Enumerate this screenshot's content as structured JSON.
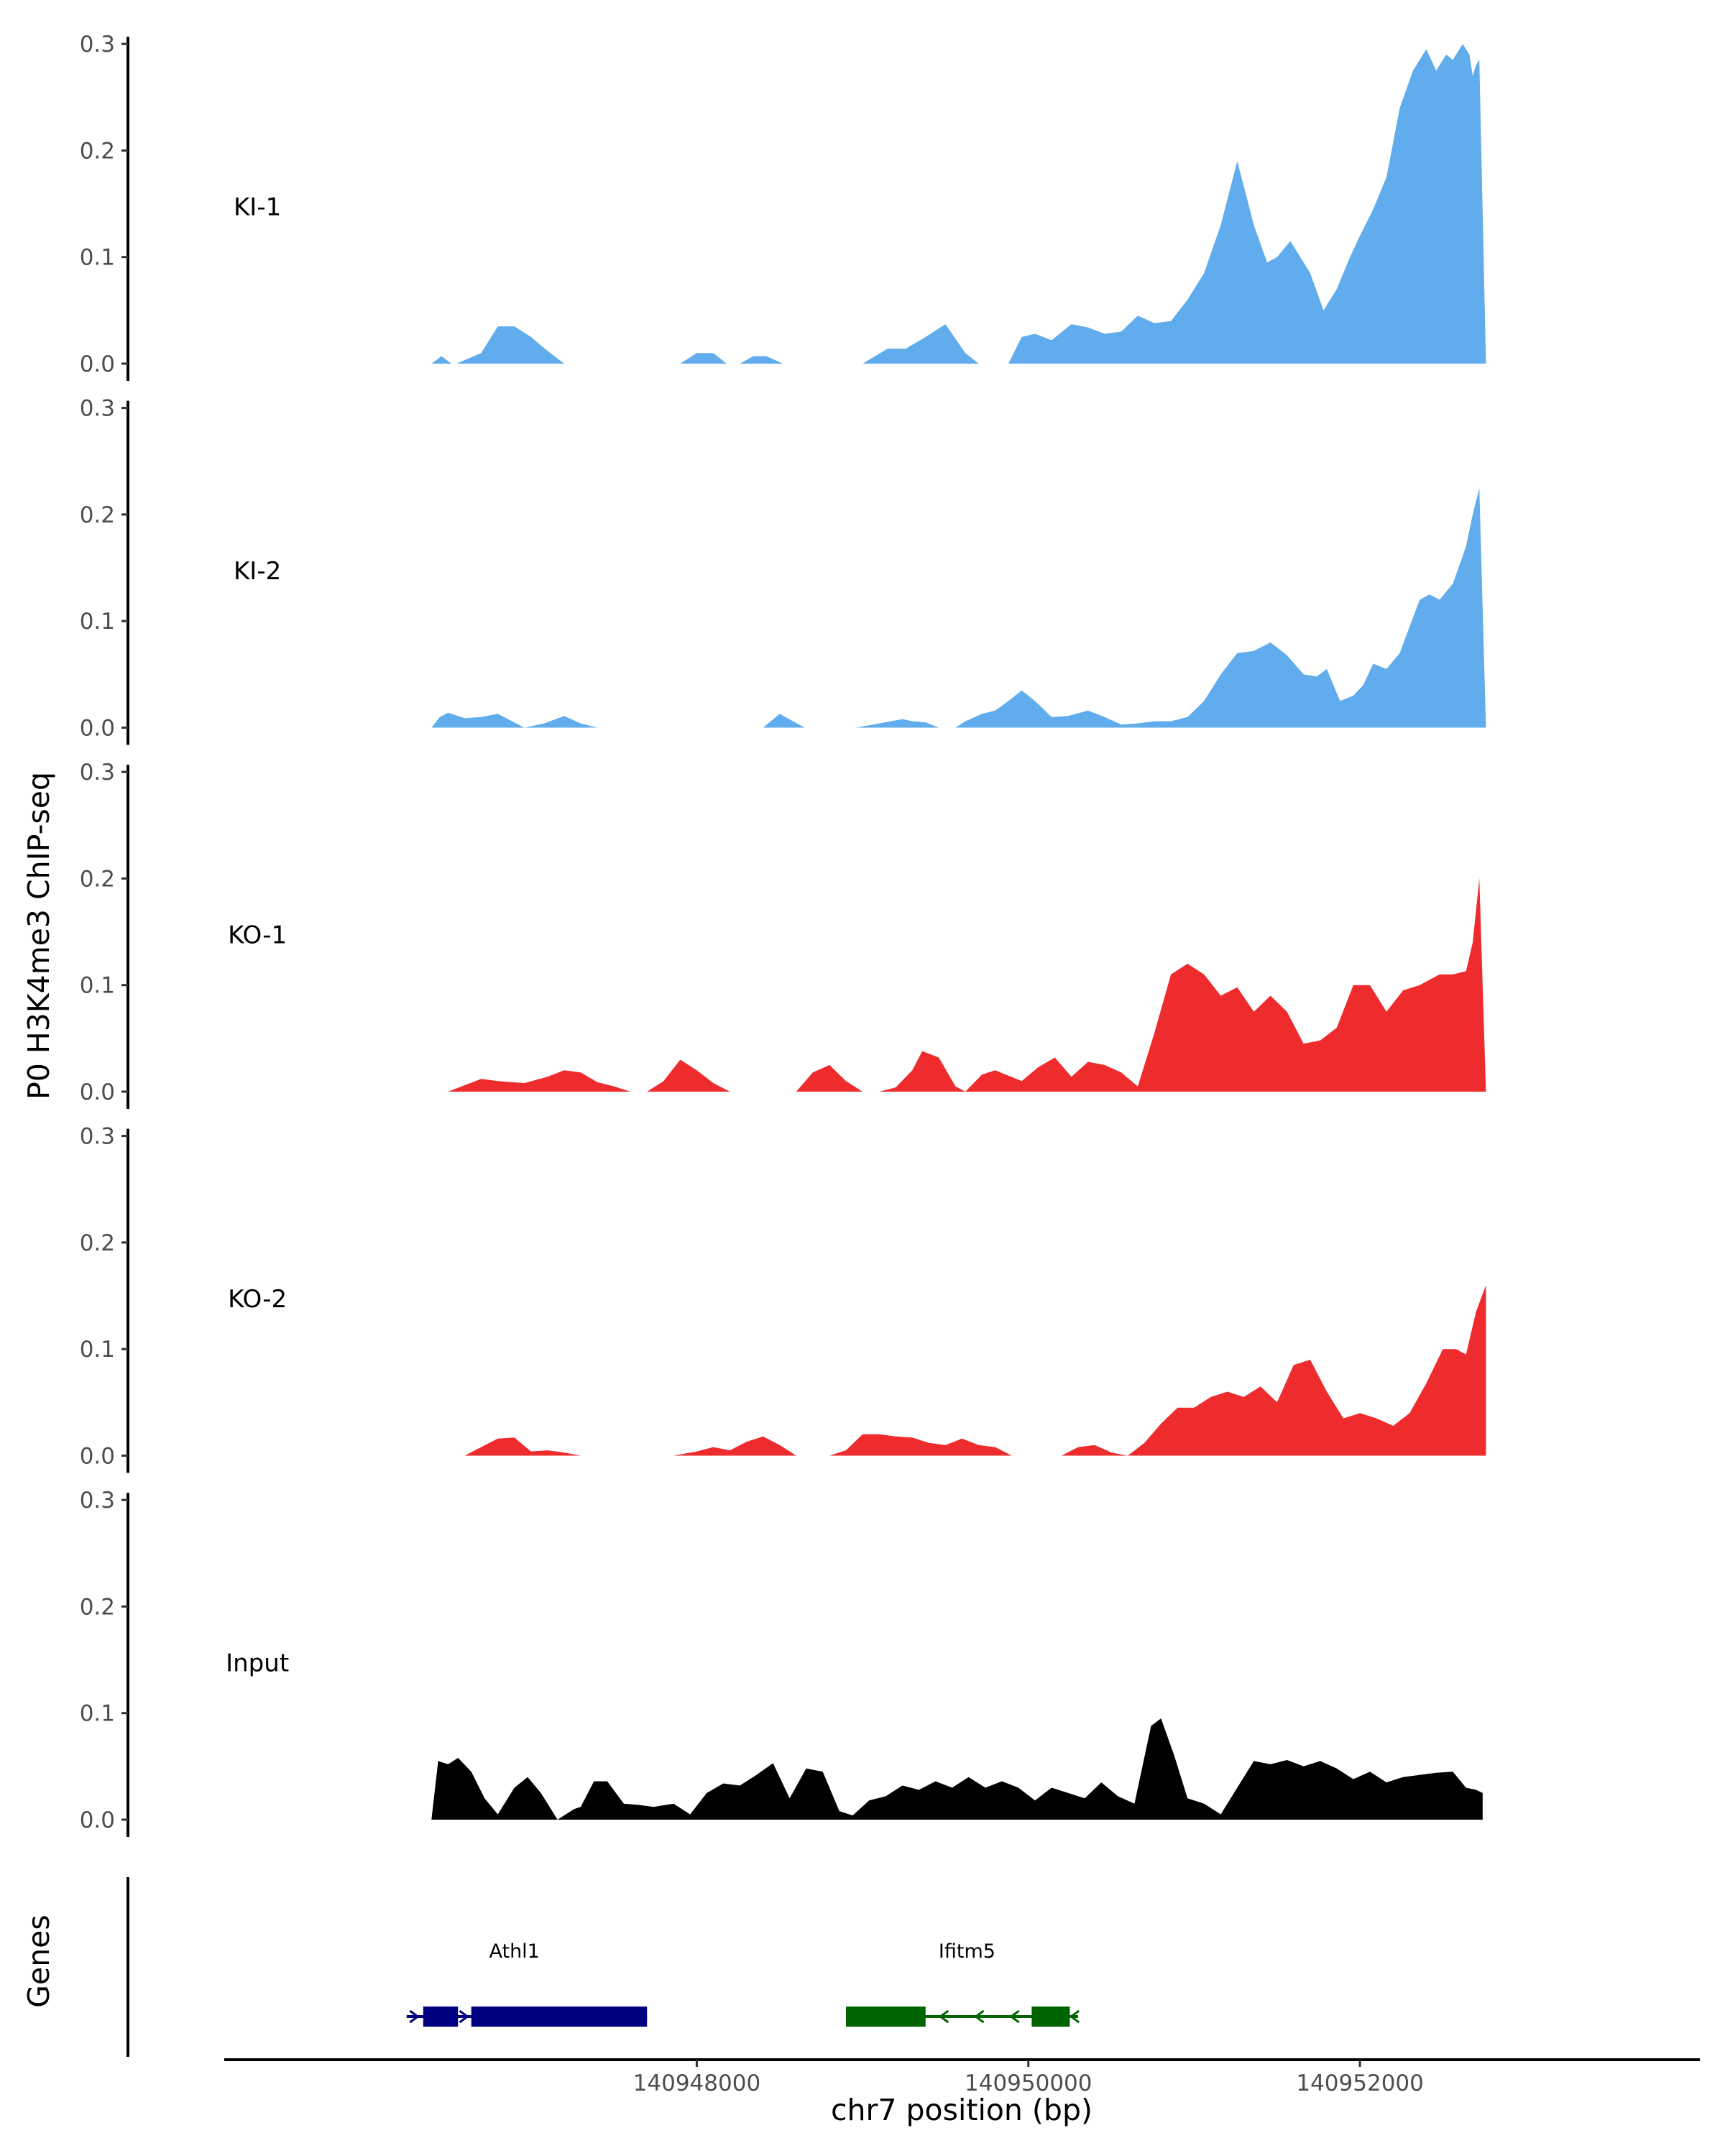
{
  "chart_data": {
    "type": "area",
    "ylabel": "P0 H3K4me3 ChIP-seq",
    "xlabel": "chr7 position (bp)",
    "y_ticks": [
      "0.0",
      "0.1",
      "0.2",
      "0.3"
    ],
    "y_tick_values": [
      0,
      0.1,
      0.2,
      0.3
    ],
    "ylim": [
      0,
      0.3
    ],
    "x_ticks": [
      "140948000",
      "140950000",
      "140952000"
    ],
    "x_tick_values": [
      140948000,
      140950000,
      140952000
    ],
    "xlim": [
      140945150,
      140954050
    ],
    "colors": {
      "KI": "#60acec",
      "KO": "#ee2b2d",
      "Input": "#000000",
      "Athl1": "#000080",
      "Ifitm5": "#006400"
    },
    "tracks": [
      {
        "label": "KI-1",
        "color": "#60acec",
        "x": [
          140946400,
          140946460,
          140946520,
          140946550,
          140946700,
          140946800,
          140946900,
          140947000,
          140947100,
          140947200,
          140947280,
          140947400,
          140947560,
          140947700,
          140947900,
          140948000,
          140948100,
          140948180,
          140948260,
          140948340,
          140948420,
          140948520,
          140948620,
          140948800,
          140949000,
          140949150,
          140949260,
          140949380,
          140949500,
          140949620,
          140949700,
          140949780,
          140949880,
          140949960,
          140950040,
          140950140,
          140950260,
          140950360,
          140950460,
          140950560,
          140950660,
          140950760,
          140950860,
          140950960,
          140951060,
          140951160,
          140951260,
          140951360,
          140951440,
          140951500,
          140951580,
          140951640,
          140951700,
          140951780,
          140951860,
          140951940,
          140952000,
          140952080,
          140952160,
          140952240,
          140952320,
          140952400,
          140952460,
          140952520,
          140952560,
          140952620,
          140952660,
          140952680,
          140952700,
          140952720,
          140952760
        ],
        "values": [
          0,
          0.007,
          0,
          0,
          0.01,
          0.035,
          0.035,
          0.025,
          0.012,
          0,
          0,
          0,
          0,
          0,
          0,
          0.01,
          0.01,
          0,
          0,
          0.007,
          0.007,
          0,
          0,
          0,
          0,
          0.014,
          0.014,
          0.025,
          0.037,
          0.01,
          0,
          0,
          0,
          0.025,
          0.028,
          0.022,
          0.037,
          0.034,
          0.028,
          0.03,
          0.045,
          0.038,
          0.04,
          0.06,
          0.085,
          0.13,
          0.19,
          0.13,
          0.095,
          0.1,
          0.115,
          0.1,
          0.085,
          0.05,
          0.07,
          0.1,
          0.12,
          0.145,
          0.175,
          0.24,
          0.275,
          0.295,
          0.275,
          0.29,
          0.285,
          0.3,
          0.29,
          0.27,
          0.28,
          0.285,
          0
        ],
        "label_x": 140945350,
        "label_y": 0.148
      },
      {
        "label": "KI-2",
        "color": "#60acec",
        "x": [
          140946400,
          140946450,
          140946500,
          140946600,
          140946700,
          140946800,
          140946960,
          140947080,
          140947200,
          140947300,
          140947400,
          140947560,
          140947700,
          140947860,
          140948000,
          140948200,
          140948300,
          140948400,
          140948500,
          140948650,
          140948800,
          140948960,
          140949100,
          140949240,
          140949300,
          140949380,
          140949460,
          140949520,
          140949560,
          140949620,
          140949720,
          140949800,
          140949880,
          140949960,
          140950040,
          140950140,
          140950240,
          140950360,
          140950460,
          140950560,
          140950660,
          140950760,
          140950860,
          140950960,
          140951060,
          140951160,
          140951260,
          140951360,
          140951460,
          140951560,
          140951660,
          140951740,
          140951800,
          140951880,
          140951960,
          140952020,
          140952080,
          140952160,
          140952240,
          140952300,
          140952360,
          140952420,
          140952480,
          140952560,
          140952640,
          140952680,
          140952720,
          140952760
        ],
        "values": [
          0,
          0.01,
          0.014,
          0.009,
          0.01,
          0.013,
          0,
          0.004,
          0.011,
          0.004,
          0,
          0,
          0,
          0,
          0,
          0,
          0,
          0,
          0.013,
          0,
          0,
          0,
          0.004,
          0.008,
          0.006,
          0.005,
          0,
          0,
          0,
          0.006,
          0.013,
          0.016,
          0.025,
          0.035,
          0.025,
          0.01,
          0.011,
          0.016,
          0.01,
          0.003,
          0.004,
          0.006,
          0.006,
          0.01,
          0.025,
          0.05,
          0.07,
          0.072,
          0.08,
          0.068,
          0.05,
          0.048,
          0.055,
          0.025,
          0.03,
          0.04,
          0.06,
          0.055,
          0.07,
          0.095,
          0.12,
          0.125,
          0.12,
          0.135,
          0.17,
          0.2,
          0.225,
          0
        ],
        "label_x": 140945350,
        "label_y": 0.148
      },
      {
        "label": "KO-1",
        "color": "#ee2b2d",
        "x": [
          140946500,
          140946700,
          140946800,
          140946960,
          140947100,
          140947200,
          140947300,
          140947400,
          140947500,
          140947600,
          140947700,
          140947800,
          140947900,
          140948000,
          140948100,
          140948200,
          140948400,
          140948600,
          140948700,
          140948800,
          140948900,
          140949000,
          140949100,
          140949200,
          140949300,
          140949360,
          140949460,
          140949560,
          140949620,
          140949720,
          140949800,
          140949880,
          140949960,
          140950060,
          140950160,
          140950260,
          140950360,
          140950460,
          140950560,
          140950660,
          140950760,
          140950860,
          140950960,
          140951060,
          140951160,
          140951260,
          140951360,
          140951460,
          140951560,
          140951660,
          140951760,
          140951860,
          140951960,
          140952060,
          140952160,
          140952260,
          140952360,
          140952420,
          140952480,
          140952560,
          140952640,
          140952680,
          140952720,
          140952760
        ],
        "values": [
          0,
          0.012,
          0.01,
          0.008,
          0.014,
          0.02,
          0.018,
          0.009,
          0.005,
          0,
          0,
          0.01,
          0.03,
          0.02,
          0.008,
          0,
          0,
          0,
          0.018,
          0.025,
          0.01,
          0,
          0,
          0.004,
          0.02,
          0.038,
          0.032,
          0.005,
          0,
          0.016,
          0.02,
          0.015,
          0.01,
          0.023,
          0.032,
          0.014,
          0.028,
          0.025,
          0.018,
          0.005,
          0.055,
          0.11,
          0.12,
          0.11,
          0.09,
          0.098,
          0.075,
          0.09,
          0.075,
          0.045,
          0.048,
          0.06,
          0.1,
          0.1,
          0.075,
          0.095,
          0.1,
          0.105,
          0.11,
          0.11,
          0.113,
          0.14,
          0.2,
          0
        ],
        "label_x": 140945350,
        "label_y": 0.148
      },
      {
        "label": "KO-2",
        "color": "#ee2b2d",
        "x": [
          140946600,
          140946700,
          140946800,
          140946900,
          140947000,
          140947100,
          140947200,
          140947300,
          140947400,
          140947600,
          140947700,
          140947860,
          140948000,
          140948100,
          140948200,
          140948300,
          140948400,
          140948500,
          140948600,
          140948800,
          140948900,
          140949000,
          140949100,
          140949200,
          140949300,
          140949400,
          140949500,
          140949600,
          140949700,
          140949800,
          140949900,
          140950000,
          140950100,
          140950200,
          140950300,
          140950400,
          140950500,
          140950600,
          140950700,
          140950800,
          140950900,
          140951000,
          140951100,
          140951200,
          140951300,
          140951400,
          140951500,
          140951600,
          140951700,
          140951800,
          140951900,
          140952000,
          140952100,
          140952200,
          140952300,
          140952400,
          140952500,
          140952580,
          140952640,
          140952700,
          140952760
        ],
        "values": [
          0,
          0.008,
          0.016,
          0.017,
          0.004,
          0.005,
          0.003,
          0,
          0,
          0,
          0,
          0,
          0.004,
          0.008,
          0.005,
          0.013,
          0.018,
          0.01,
          0,
          0,
          0.005,
          0.02,
          0.02,
          0.018,
          0.017,
          0.012,
          0.01,
          0.016,
          0.01,
          0.008,
          0,
          0,
          0,
          0,
          0.008,
          0.01,
          0.003,
          0,
          0.012,
          0.03,
          0.045,
          0.045,
          0.055,
          0.06,
          0.055,
          0.065,
          0.05,
          0.085,
          0.09,
          0.06,
          0.035,
          0.04,
          0.035,
          0.028,
          0.04,
          0.068,
          0.1,
          0.1,
          0.095,
          0.135,
          0.16
        ],
        "label_x": 140945350,
        "label_y": 0.148
      },
      {
        "label": "Input",
        "color": "#000000",
        "x": [
          140946400,
          140946440,
          140946500,
          140946560,
          140946640,
          140946720,
          140946800,
          140946900,
          140946980,
          140947060,
          140947160,
          140947260,
          140947300,
          140947380,
          140947460,
          140947560,
          140947640,
          140947740,
          140947860,
          140947960,
          140948060,
          140948160,
          140948260,
          140948360,
          140948460,
          140948560,
          140948660,
          140948760,
          140948860,
          140948940,
          140949040,
          140949140,
          140949240,
          140949340,
          140949440,
          140949540,
          140949640,
          140949740,
          140949840,
          140949940,
          140950040,
          140950140,
          140950240,
          140950340,
          140950440,
          140950540,
          140950640,
          140950740,
          140950800,
          140950880,
          140950960,
          140951060,
          140951160,
          140951260,
          140951360,
          140951460,
          140951560,
          140951660,
          140951760,
          140951860,
          140951960,
          140952060,
          140952160,
          140952260,
          140952360,
          140952460,
          140952560,
          140952640,
          140952700,
          140952740
        ],
        "values": [
          0,
          0.055,
          0.052,
          0.058,
          0.045,
          0.02,
          0.005,
          0.03,
          0.04,
          0.025,
          0,
          0.01,
          0.012,
          0.036,
          0.036,
          0.015,
          0.014,
          0.012,
          0.015,
          0.005,
          0.025,
          0.034,
          0.032,
          0.042,
          0.053,
          0.02,
          0.048,
          0.045,
          0.008,
          0.004,
          0.018,
          0.022,
          0.032,
          0.028,
          0.036,
          0.03,
          0.04,
          0.03,
          0.036,
          0.03,
          0.018,
          0.03,
          0.025,
          0.02,
          0.035,
          0.022,
          0.015,
          0.088,
          0.095,
          0.06,
          0.02,
          0.015,
          0.005,
          0.03,
          0.055,
          0.052,
          0.056,
          0.05,
          0.055,
          0.048,
          0.038,
          0.045,
          0.035,
          0.04,
          0.042,
          0.044,
          0.045,
          0.03,
          0.028,
          0.025
        ],
        "label_x": 140945350,
        "label_y": 0.148
      }
    ],
    "genes_label": "Genes",
    "genes": [
      {
        "name": "Athl1",
        "color": "#000080",
        "strand": "+",
        "start": 140946250,
        "end": 140947700,
        "exons": [
          [
            140946350,
            140946560
          ],
          [
            140946640,
            140947700
          ]
        ],
        "label_x": 140946900
      },
      {
        "name": "Ifitm5",
        "color": "#006400",
        "strand": "-",
        "start": 140948900,
        "end": 140950300,
        "exons": [
          [
            140948900,
            140949380
          ],
          [
            140950020,
            140950250
          ]
        ],
        "label_x": 140949630
      }
    ]
  }
}
